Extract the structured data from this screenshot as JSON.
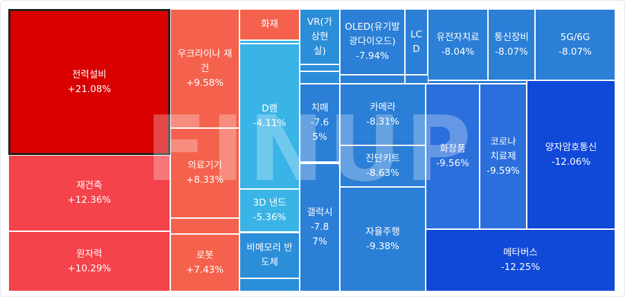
{
  "chart_data": {
    "type": "treemap",
    "title": "",
    "watermark": "FINUP",
    "items": [
      {
        "name": "전력설비",
        "value": "+21.08%",
        "change": 21.08,
        "color": "#d90000",
        "selected": true
      },
      {
        "name": "재건축",
        "value": "+12.36%",
        "change": 12.36,
        "color": "#f4434b"
      },
      {
        "name": "원자력",
        "value": "+10.29%",
        "change": 10.29,
        "color": "#f4434b"
      },
      {
        "name": "우크라이나 재건",
        "value": "+9.58%",
        "change": 9.58,
        "color": "#f4624d"
      },
      {
        "name": "의료기기",
        "value": "+8.33%",
        "change": 8.33,
        "color": "#f4624d"
      },
      {
        "name": "로봇",
        "value": "+7.43%",
        "change": 7.43,
        "color": "#f4624d"
      },
      {
        "name": "화재",
        "value": "",
        "change": null,
        "color": "#f4624d"
      },
      {
        "name": "D램",
        "value": "-4.11%",
        "change": -4.11,
        "color": "#3ab4e6"
      },
      {
        "name": "3D 낸드",
        "value": "-5.36%",
        "change": -5.36,
        "color": "#3ab4e6"
      },
      {
        "name": "비메모리 반도체",
        "value": "",
        "change": null,
        "color": "#2b8ed9"
      },
      {
        "name": "VR(가상현실)",
        "value": "",
        "change": null,
        "color": "#2b8ed9"
      },
      {
        "name": "치매",
        "value": "-7.65%",
        "change": -7.65,
        "color": "#2b7fd6"
      },
      {
        "name": "갤럭시",
        "value": "-7.87%",
        "change": -7.87,
        "color": "#2b7fd6"
      },
      {
        "name": "OLED(유기발광다이오드)",
        "value": "-7.94%",
        "change": -7.94,
        "color": "#2b7fd6"
      },
      {
        "name": "LCD",
        "value": "",
        "change": null,
        "color": "#2b7fd6"
      },
      {
        "name": "유전자치료",
        "value": "-8.04%",
        "change": -8.04,
        "color": "#2b7fd6"
      },
      {
        "name": "통신장비",
        "value": "-8.07%",
        "change": -8.07,
        "color": "#2b7fd6"
      },
      {
        "name": "5G/6G",
        "value": "-8.07%",
        "change": -8.07,
        "color": "#2b7fd6"
      },
      {
        "name": "카메라",
        "value": "-8.31%",
        "change": -8.31,
        "color": "#2b7fd6"
      },
      {
        "name": "진단키트",
        "value": "-8.63%",
        "change": -8.63,
        "color": "#2b7fd6"
      },
      {
        "name": "자율주행",
        "value": "-9.38%",
        "change": -9.38,
        "color": "#2b7fd6"
      },
      {
        "name": "화장품",
        "value": "-9.56%",
        "change": -9.56,
        "color": "#2b6fdc"
      },
      {
        "name": "코로나 치료제",
        "value": "-9.59%",
        "change": -9.59,
        "color": "#2b6fdc"
      },
      {
        "name": "양자암호통신",
        "value": "-12.06%",
        "change": -12.06,
        "color": "#1048d8"
      },
      {
        "name": "메타버스",
        "value": "-12.25%",
        "change": -12.25,
        "color": "#1048d8"
      }
    ]
  }
}
